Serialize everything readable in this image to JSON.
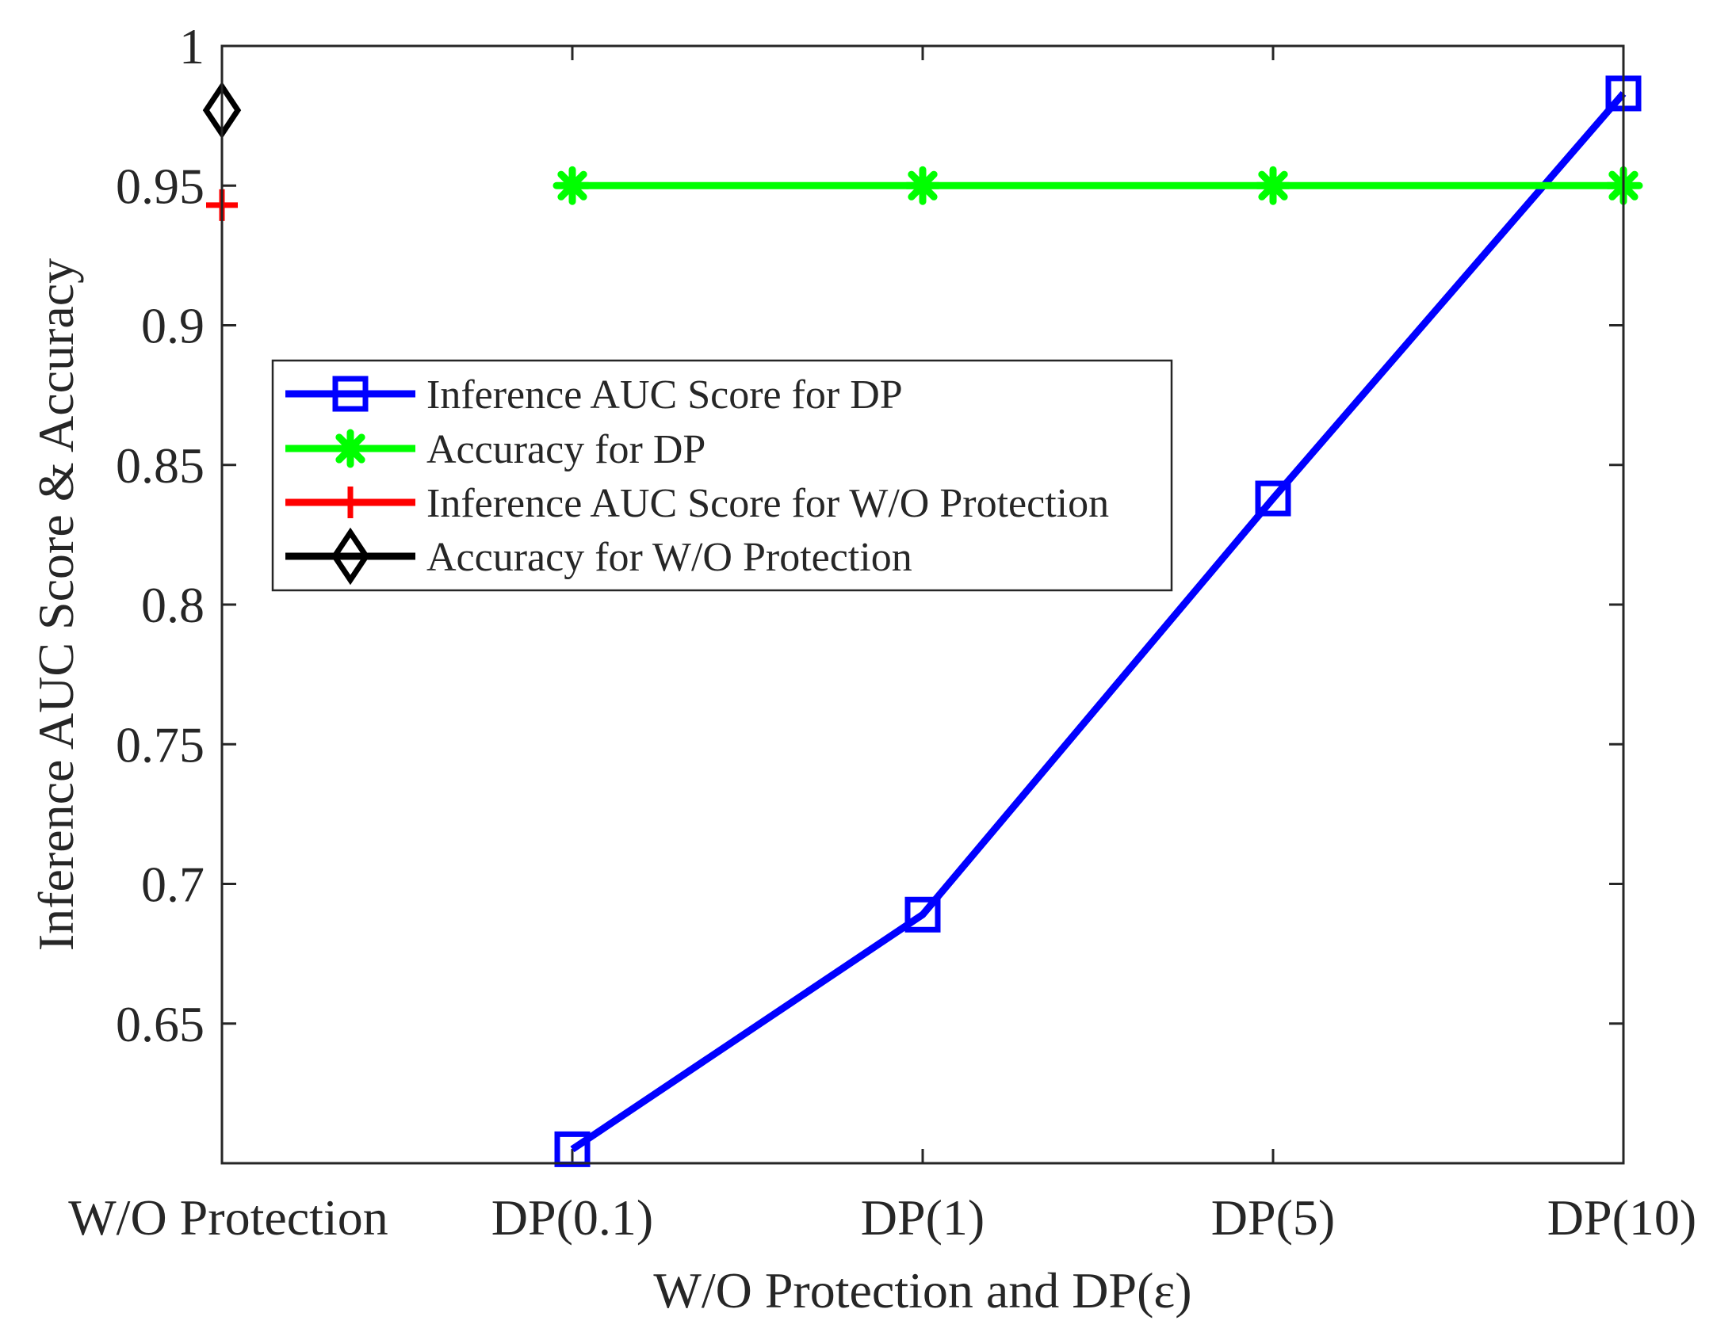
{
  "chart_data": {
    "type": "line",
    "title": "",
    "xlabel": "W/O Protection and DP(ε)",
    "ylabel": "Inference AUC Score & Accuracy",
    "categories": [
      "W/O Protection",
      "DP(0.1)",
      "DP(1)",
      "DP(5)",
      "DP(10)"
    ],
    "ylim": [
      0.6,
      1.0
    ],
    "yticks": [
      0.65,
      0.7,
      0.75,
      0.8,
      0.85,
      0.9,
      0.95,
      1
    ],
    "ytick_labels": [
      "0.65",
      "0.7",
      "0.75",
      "0.8",
      "0.85",
      "0.9",
      "0.95",
      "1"
    ],
    "grid": false,
    "legend_position": "center-left",
    "series": [
      {
        "name": "Inference AUC Score for DP",
        "color": "#0000ff",
        "marker": "square",
        "values": [
          null,
          0.605,
          0.689,
          0.838,
          0.983
        ]
      },
      {
        "name": "Accuracy for DP",
        "color": "#00ff00",
        "marker": "asterisk",
        "values": [
          null,
          0.95,
          0.95,
          0.95,
          0.95
        ]
      },
      {
        "name": "Inference AUC Score for W/O Protection",
        "color": "#ff0000",
        "marker": "plus",
        "values": [
          0.943,
          null,
          null,
          null,
          null
        ]
      },
      {
        "name": "Accuracy for W/O Protection",
        "color": "#000000",
        "marker": "diamond",
        "values": [
          0.977,
          null,
          null,
          null,
          null
        ]
      }
    ]
  }
}
